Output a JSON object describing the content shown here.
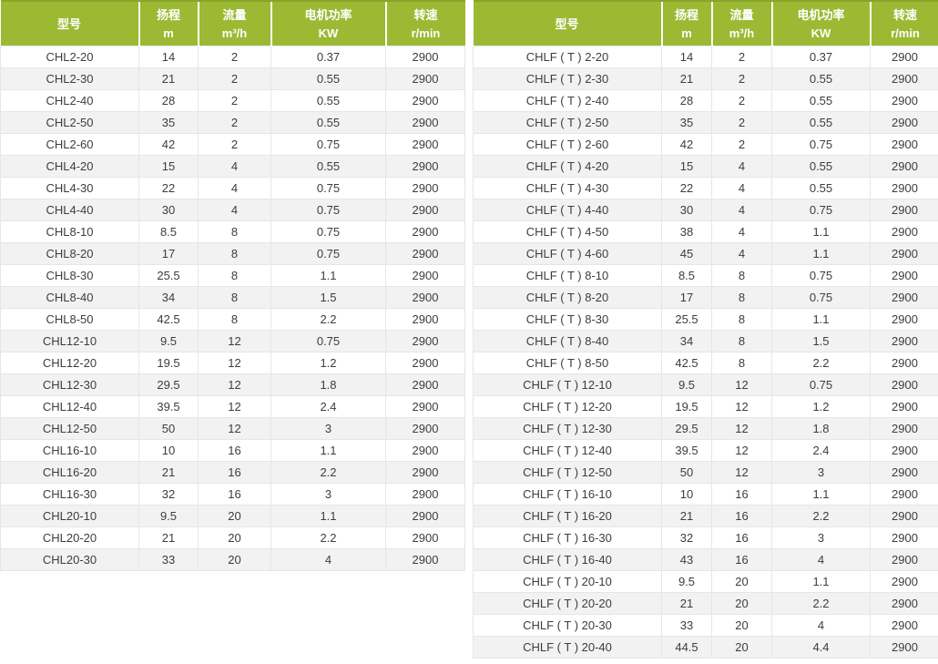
{
  "colors": {
    "header_bg": "#9cb933",
    "header_top_border": "#8aa32a",
    "header_text": "#ffffff",
    "row_bg": "#ffffff",
    "row_alt_bg": "#f2f2f2",
    "cell_border": "#e6e6e6",
    "body_text": "#3d3d3d"
  },
  "tables": [
    {
      "name": "CHL series specifications",
      "columns": [
        {
          "key": "model",
          "label": "型号",
          "unit": ""
        },
        {
          "key": "head",
          "label": "扬程",
          "unit": "m"
        },
        {
          "key": "flow",
          "label": "流量",
          "unit": "m³/h"
        },
        {
          "key": "power",
          "label": "电机功率",
          "unit": "KW"
        },
        {
          "key": "speed",
          "label": "转速",
          "unit": "r/min"
        }
      ],
      "rows": [
        [
          "CHL2-20",
          "14",
          "2",
          "0.37",
          "2900"
        ],
        [
          "CHL2-30",
          "21",
          "2",
          "0.55",
          "2900"
        ],
        [
          "CHL2-40",
          "28",
          "2",
          "0.55",
          "2900"
        ],
        [
          "CHL2-50",
          "35",
          "2",
          "0.55",
          "2900"
        ],
        [
          "CHL2-60",
          "42",
          "2",
          "0.75",
          "2900"
        ],
        [
          "CHL4-20",
          "15",
          "4",
          "0.55",
          "2900"
        ],
        [
          "CHL4-30",
          "22",
          "4",
          "0.75",
          "2900"
        ],
        [
          "CHL4-40",
          "30",
          "4",
          "0.75",
          "2900"
        ],
        [
          "CHL8-10",
          "8.5",
          "8",
          "0.75",
          "2900"
        ],
        [
          "CHL8-20",
          "17",
          "8",
          "0.75",
          "2900"
        ],
        [
          "CHL8-30",
          "25.5",
          "8",
          "1.1",
          "2900"
        ],
        [
          "CHL8-40",
          "34",
          "8",
          "1.5",
          "2900"
        ],
        [
          "CHL8-50",
          "42.5",
          "8",
          "2.2",
          "2900"
        ],
        [
          "CHL12-10",
          "9.5",
          "12",
          "0.75",
          "2900"
        ],
        [
          "CHL12-20",
          "19.5",
          "12",
          "1.2",
          "2900"
        ],
        [
          "CHL12-30",
          "29.5",
          "12",
          "1.8",
          "2900"
        ],
        [
          "CHL12-40",
          "39.5",
          "12",
          "2.4",
          "2900"
        ],
        [
          "CHL12-50",
          "50",
          "12",
          "3",
          "2900"
        ],
        [
          "CHL16-10",
          "10",
          "16",
          "1.1",
          "2900"
        ],
        [
          "CHL16-20",
          "21",
          "16",
          "2.2",
          "2900"
        ],
        [
          "CHL16-30",
          "32",
          "16",
          "3",
          "2900"
        ],
        [
          "CHL20-10",
          "9.5",
          "20",
          "1.1",
          "2900"
        ],
        [
          "CHL20-20",
          "21",
          "20",
          "2.2",
          "2900"
        ],
        [
          "CHL20-30",
          "33",
          "20",
          "4",
          "2900"
        ]
      ]
    },
    {
      "name": "CHLF(T) series specifications",
      "columns": [
        {
          "key": "model",
          "label": "型号",
          "unit": ""
        },
        {
          "key": "head",
          "label": "扬程",
          "unit": "m"
        },
        {
          "key": "flow",
          "label": "流量",
          "unit": "m³/h"
        },
        {
          "key": "power",
          "label": "电机功率",
          "unit": "KW"
        },
        {
          "key": "speed",
          "label": "转速",
          "unit": "r/min"
        }
      ],
      "rows": [
        [
          "CHLF ( T ) 2-20",
          "14",
          "2",
          "0.37",
          "2900"
        ],
        [
          "CHLF ( T ) 2-30",
          "21",
          "2",
          "0.55",
          "2900"
        ],
        [
          "CHLF ( T ) 2-40",
          "28",
          "2",
          "0.55",
          "2900"
        ],
        [
          "CHLF ( T ) 2-50",
          "35",
          "2",
          "0.55",
          "2900"
        ],
        [
          "CHLF ( T ) 2-60",
          "42",
          "2",
          "0.75",
          "2900"
        ],
        [
          "CHLF ( T ) 4-20",
          "15",
          "4",
          "0.55",
          "2900"
        ],
        [
          "CHLF ( T ) 4-30",
          "22",
          "4",
          "0.55",
          "2900"
        ],
        [
          "CHLF ( T ) 4-40",
          "30",
          "4",
          "0.75",
          "2900"
        ],
        [
          "CHLF ( T ) 4-50",
          "38",
          "4",
          "1.1",
          "2900"
        ],
        [
          "CHLF ( T ) 4-60",
          "45",
          "4",
          "1.1",
          "2900"
        ],
        [
          "CHLF ( T ) 8-10",
          "8.5",
          "8",
          "0.75",
          "2900"
        ],
        [
          "CHLF ( T ) 8-20",
          "17",
          "8",
          "0.75",
          "2900"
        ],
        [
          "CHLF ( T ) 8-30",
          "25.5",
          "8",
          "1.1",
          "2900"
        ],
        [
          "CHLF ( T ) 8-40",
          "34",
          "8",
          "1.5",
          "2900"
        ],
        [
          "CHLF ( T ) 8-50",
          "42.5",
          "8",
          "2.2",
          "2900"
        ],
        [
          "CHLF ( T ) 12-10",
          "9.5",
          "12",
          "0.75",
          "2900"
        ],
        [
          "CHLF ( T ) 12-20",
          "19.5",
          "12",
          "1.2",
          "2900"
        ],
        [
          "CHLF ( T ) 12-30",
          "29.5",
          "12",
          "1.8",
          "2900"
        ],
        [
          "CHLF ( T ) 12-40",
          "39.5",
          "12",
          "2.4",
          "2900"
        ],
        [
          "CHLF ( T ) 12-50",
          "50",
          "12",
          "3",
          "2900"
        ],
        [
          "CHLF ( T ) 16-10",
          "10",
          "16",
          "1.1",
          "2900"
        ],
        [
          "CHLF ( T ) 16-20",
          "21",
          "16",
          "2.2",
          "2900"
        ],
        [
          "CHLF ( T ) 16-30",
          "32",
          "16",
          "3",
          "2900"
        ],
        [
          "CHLF ( T ) 16-40",
          "43",
          "16",
          "4",
          "2900"
        ],
        [
          "CHLF ( T ) 20-10",
          "9.5",
          "20",
          "1.1",
          "2900"
        ],
        [
          "CHLF ( T ) 20-20",
          "21",
          "20",
          "2.2",
          "2900"
        ],
        [
          "CHLF ( T ) 20-30",
          "33",
          "20",
          "4",
          "2900"
        ],
        [
          "CHLF ( T ) 20-40",
          "44.5",
          "20",
          "4.4",
          "2900"
        ]
      ]
    }
  ]
}
